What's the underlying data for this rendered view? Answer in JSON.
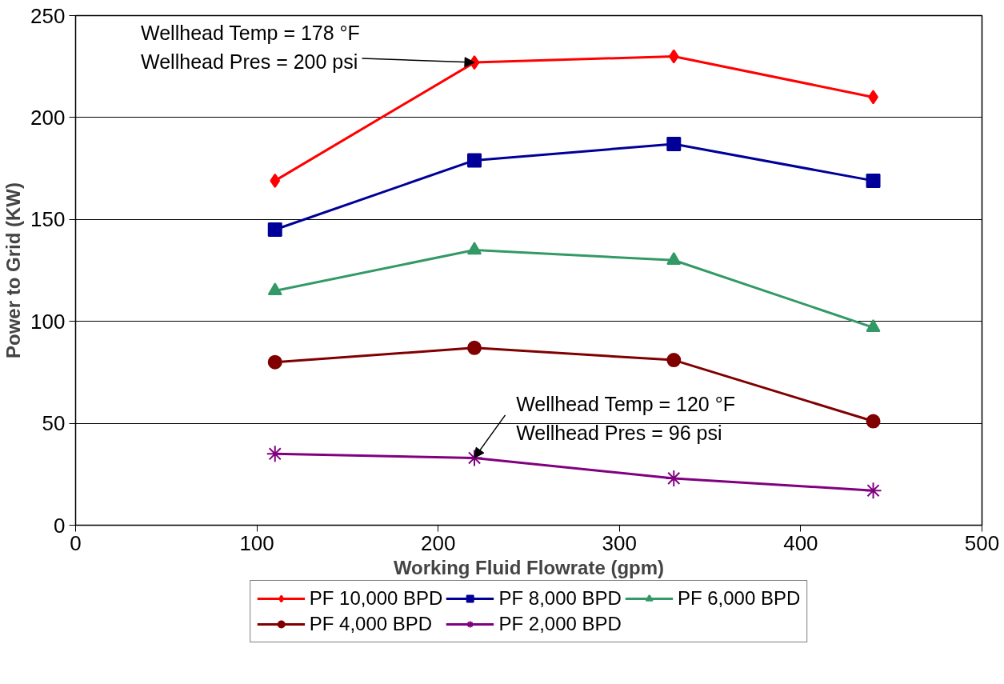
{
  "chart_data": {
    "type": "line",
    "xlabel": "Working Fluid Flowrate (gpm)",
    "ylabel": "Power to Grid (KW)",
    "x": [
      110,
      220,
      330,
      440
    ],
    "series": [
      {
        "name": "PF 10,000 BPD",
        "color": "#ff0000",
        "marker": "diamond",
        "values": [
          169,
          227,
          230,
          210
        ]
      },
      {
        "name": "PF 8,000 BPD",
        "color": "#000099",
        "marker": "square",
        "values": [
          145,
          179,
          187,
          169
        ]
      },
      {
        "name": "PF 6,000 BPD",
        "color": "#339966",
        "marker": "triangle",
        "values": [
          115,
          135,
          130,
          97
        ]
      },
      {
        "name": "PF 4,000 BPD",
        "color": "#800000",
        "marker": "circle",
        "values": [
          80,
          87,
          81,
          51
        ]
      },
      {
        "name": "PF 2,000 BPD",
        "color": "#800080",
        "marker": "cross",
        "values": [
          35,
          33,
          23,
          17
        ]
      }
    ],
    "annotations": [
      {
        "text": "Wellhead Temp = 178 °F\nWellhead Pres = 200 psi",
        "x": 220,
        "y": 227
      },
      {
        "text": "Wellhead Temp = 120 °F\nWellhead Pres = 96 psi",
        "x": 220,
        "y": 33
      }
    ],
    "xlim": [
      0,
      500
    ],
    "xticks": [
      0,
      100,
      200,
      300,
      400,
      500
    ],
    "ylim": [
      0,
      250
    ],
    "yticks": [
      0,
      50,
      100,
      150,
      200,
      250
    ],
    "grid": "y",
    "legend": "bottom",
    "line_style": "solid"
  }
}
